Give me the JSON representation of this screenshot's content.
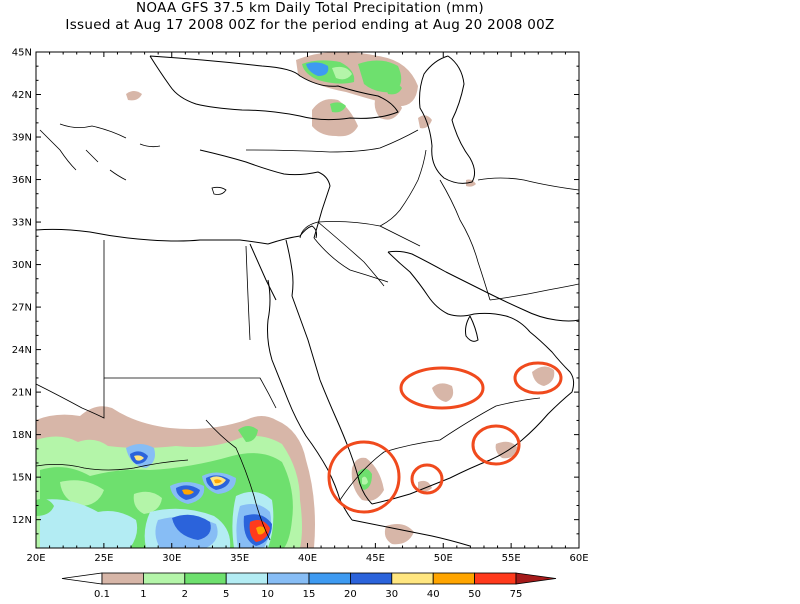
{
  "title": {
    "line1": "NOAA GFS 37.5 km Daily Total Precipitation (mm)",
    "line2": "Issued at Aug 17 2008 00Z for the period ending at Aug 20 2008 00Z"
  },
  "axes": {
    "lat_labels": [
      "45N",
      "42N",
      "39N",
      "36N",
      "33N",
      "30N",
      "27N",
      "24N",
      "21N",
      "18N",
      "15N",
      "12N"
    ],
    "lon_labels": [
      "20E",
      "25E",
      "30E",
      "35E",
      "40E",
      "45E",
      "50E",
      "55E",
      "60E"
    ]
  },
  "legend": {
    "tick_labels": [
      "0.1",
      "1",
      "2",
      "5",
      "10",
      "15",
      "20",
      "30",
      "40",
      "50",
      "75"
    ],
    "colors": [
      "#ffffff",
      "#d7b6a8",
      "#b4f5a9",
      "#6ee06e",
      "#b3ecf3",
      "#87bdf5",
      "#3e9af1",
      "#2b63db",
      "#ffe680",
      "#ffa500",
      "#ff3a1c",
      "#a51a1a"
    ]
  },
  "colors": {
    "coast": "#000000",
    "annotation_circle": "#f04a1d"
  }
}
